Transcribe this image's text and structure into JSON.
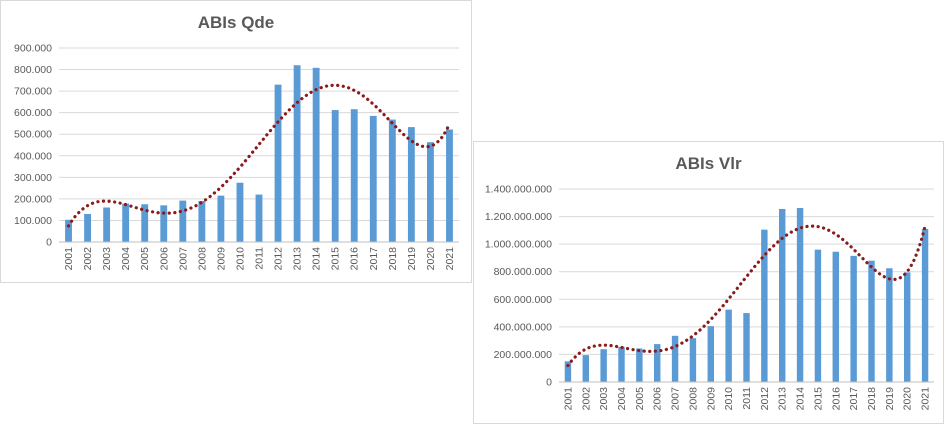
{
  "colors": {
    "bar": "#5b9bd5",
    "trend": "#8b1a1a",
    "grid": "#d9d9d9",
    "axis": "#bfbfbf",
    "text": "#595959"
  },
  "chart_data": [
    {
      "type": "bar",
      "title": "ABIs Qde",
      "categories": [
        "2001",
        "2002",
        "2003",
        "2004",
        "2005",
        "2006",
        "2007",
        "2008",
        "2009",
        "2010",
        "2011",
        "2012",
        "2013",
        "2014",
        "2015",
        "2016",
        "2017",
        "2018",
        "2019",
        "2020",
        "2021"
      ],
      "values": [
        103000,
        130000,
        160000,
        178000,
        175000,
        170000,
        192000,
        190000,
        215000,
        275000,
        220000,
        730000,
        820000,
        808000,
        612000,
        616000,
        585000,
        568000,
        533000,
        463000,
        522000
      ],
      "ylim": [
        0,
        900000
      ],
      "yticks": [
        0,
        100000,
        200000,
        300000,
        400000,
        500000,
        600000,
        700000,
        800000,
        900000
      ],
      "ytick_labels": [
        "0",
        "100.000",
        "200.000",
        "300.000",
        "400.000",
        "500.000",
        "600.000",
        "700.000",
        "800.000",
        "900.000"
      ],
      "trendline": {
        "style": "dotted",
        "type": "polynomial"
      },
      "grid": true,
      "legend": "none"
    },
    {
      "type": "bar",
      "title": "ABIs Vlr",
      "categories": [
        "2001",
        "2002",
        "2003",
        "2004",
        "2005",
        "2006",
        "2007",
        "2008",
        "2009",
        "2010",
        "2011",
        "2012",
        "2013",
        "2014",
        "2015",
        "2016",
        "2017",
        "2018",
        "2019",
        "2020",
        "2021"
      ],
      "values": [
        150000000,
        195000000,
        238000000,
        255000000,
        243000000,
        275000000,
        335000000,
        318000000,
        405000000,
        525000000,
        500000000,
        1105000000,
        1255000000,
        1262000000,
        960000000,
        945000000,
        915000000,
        880000000,
        825000000,
        795000000,
        1110000000
      ],
      "ylim": [
        0,
        1400000000
      ],
      "yticks": [
        0,
        200000000,
        400000000,
        600000000,
        800000000,
        1000000000,
        1200000000,
        1400000000
      ],
      "ytick_labels": [
        "0",
        "200.000.000",
        "400.000.000",
        "600.000.000",
        "800.000.000",
        "1.000.000.000",
        "1.200.000.000",
        "1.400.000.000"
      ],
      "trendline": {
        "style": "dotted",
        "type": "polynomial"
      },
      "grid": true,
      "legend": "none"
    }
  ]
}
